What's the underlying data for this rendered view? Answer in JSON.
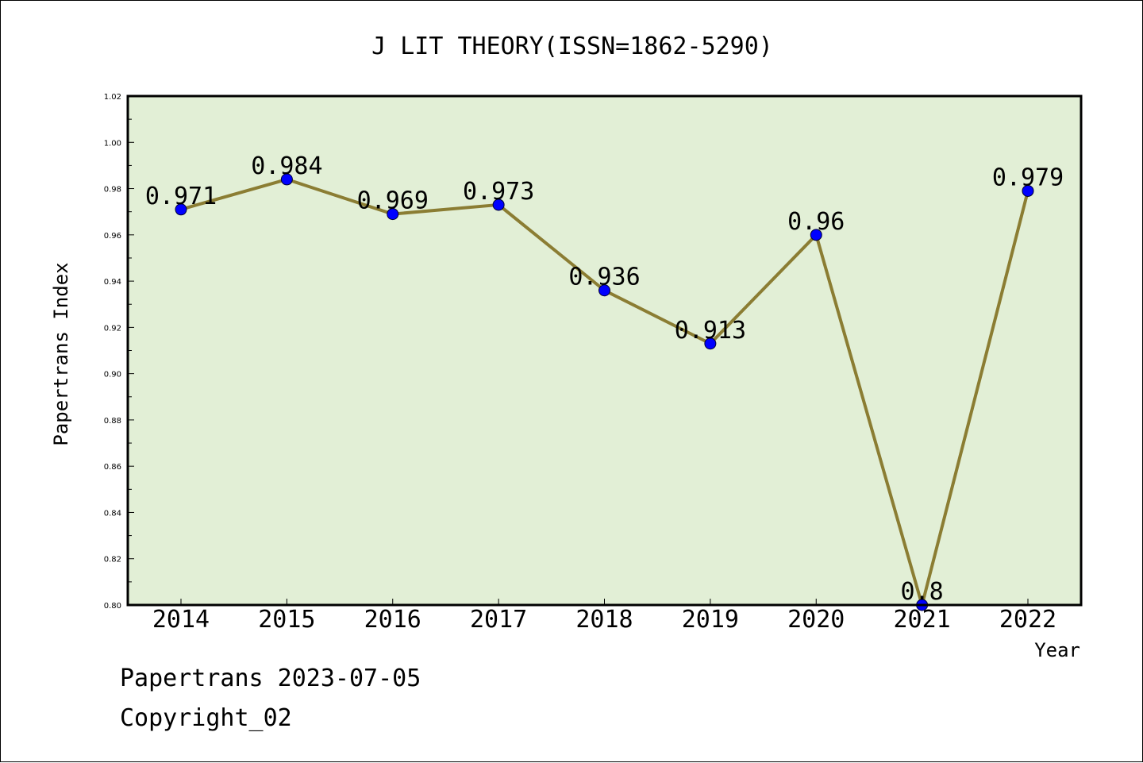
{
  "chart_data": {
    "type": "line",
    "title": "J LIT THEORY(ISSN=1862-5290)",
    "xlabel": "Year",
    "ylabel": "Papertrans Index",
    "categories": [
      "2014",
      "2015",
      "2016",
      "2017",
      "2018",
      "2019",
      "2020",
      "2021",
      "2022"
    ],
    "series": [
      {
        "values": [
          0.971,
          0.984,
          0.969,
          0.973,
          0.936,
          0.913,
          0.96,
          0.8,
          0.979
        ]
      }
    ],
    "data_labels": [
      "0.971",
      "0.984",
      "0.969",
      "0.973",
      "0.936",
      "0.913",
      "0.96",
      "0.8",
      "0.979"
    ],
    "ylim": [
      0.8,
      1.02
    ],
    "yticks": [
      "0.80",
      "0.82",
      "0.84",
      "0.86",
      "0.88",
      "0.90",
      "0.92",
      "0.94",
      "0.96",
      "0.98",
      "1.00",
      "1.02"
    ],
    "grid": false,
    "colors": {
      "plot_background": "#e2efd6",
      "line": "#8b7d33",
      "marker": "#0000ff"
    }
  },
  "footer": {
    "source": "Papertrans 2023-07-05",
    "copyright": "Copyright_02"
  }
}
